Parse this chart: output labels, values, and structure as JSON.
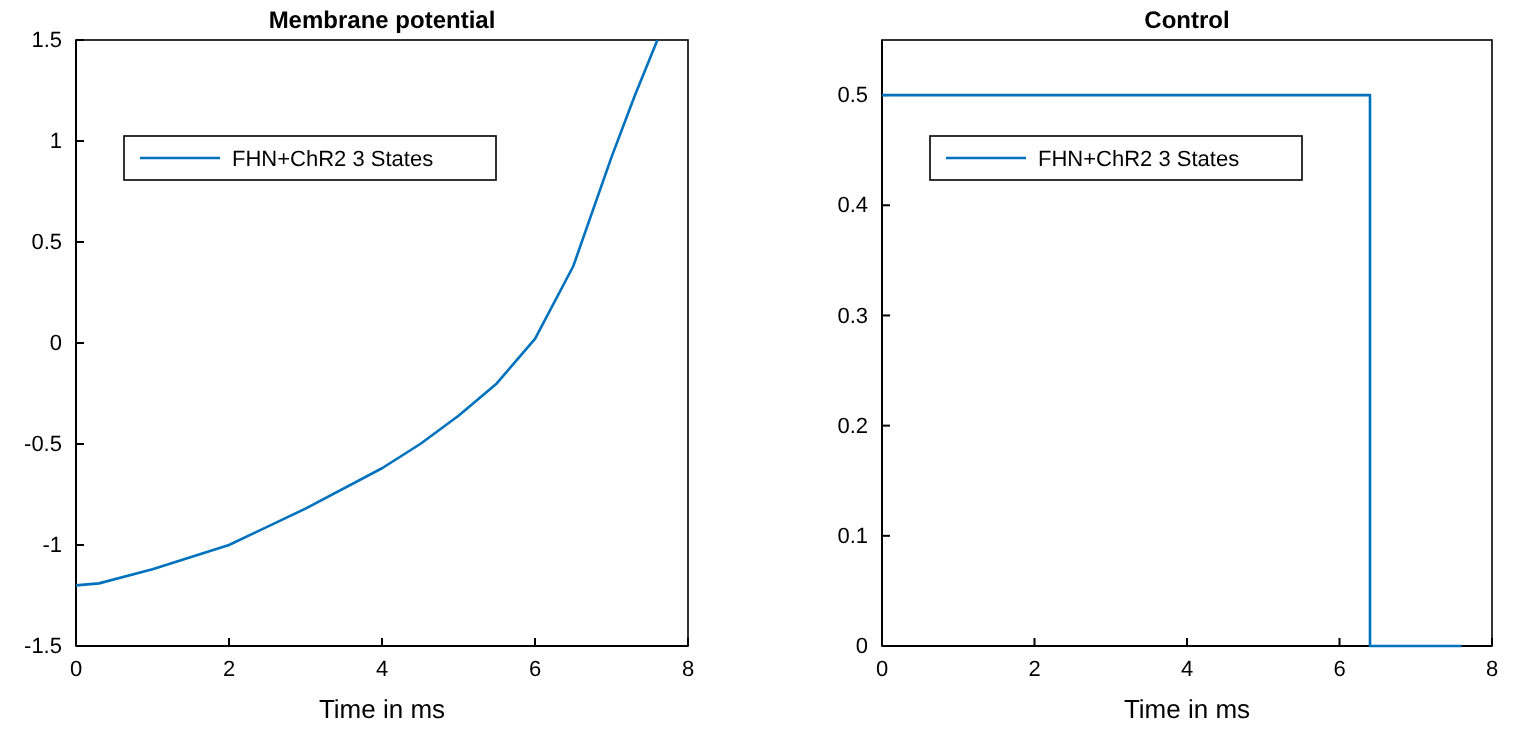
{
  "chart_data": [
    {
      "type": "line",
      "title": "Membrane potential",
      "xlabel": "Time in ms",
      "x": [
        0,
        0.3,
        1,
        2,
        3,
        4,
        4.5,
        5,
        5.5,
        6,
        6.5,
        7,
        7.3,
        7.6
      ],
      "series": [
        {
          "name": "FHN+ChR2 3 States",
          "color": "#0072bd",
          "values": [
            -1.2,
            -1.19,
            -1.12,
            -1.0,
            -0.82,
            -0.62,
            -0.5,
            -0.36,
            -0.2,
            0.02,
            0.38,
            0.92,
            1.22,
            1.5
          ]
        }
      ],
      "xlim": [
        0,
        8
      ],
      "xticks": [
        0,
        2,
        4,
        6,
        8
      ],
      "ylim": [
        -1.5,
        1.5
      ],
      "yticks": [
        -1.5,
        -1,
        -0.5,
        0,
        0.5,
        1,
        1.5
      ],
      "legend": "top left"
    },
    {
      "type": "line",
      "title": "Control",
      "xlabel": "Time in ms",
      "x": [
        0,
        6.4,
        6.4,
        7.6
      ],
      "series": [
        {
          "name": "FHN+ChR2 3 States",
          "color": "#0072bd",
          "values": [
            0.5,
            0.5,
            0,
            0
          ]
        }
      ],
      "xlim": [
        0,
        8
      ],
      "xticks": [
        0,
        2,
        4,
        6,
        8
      ],
      "ylim": [
        0,
        0.55
      ],
      "yticks": [
        0,
        0.1,
        0.2,
        0.3,
        0.4,
        0.5
      ],
      "legend": "top left"
    }
  ]
}
